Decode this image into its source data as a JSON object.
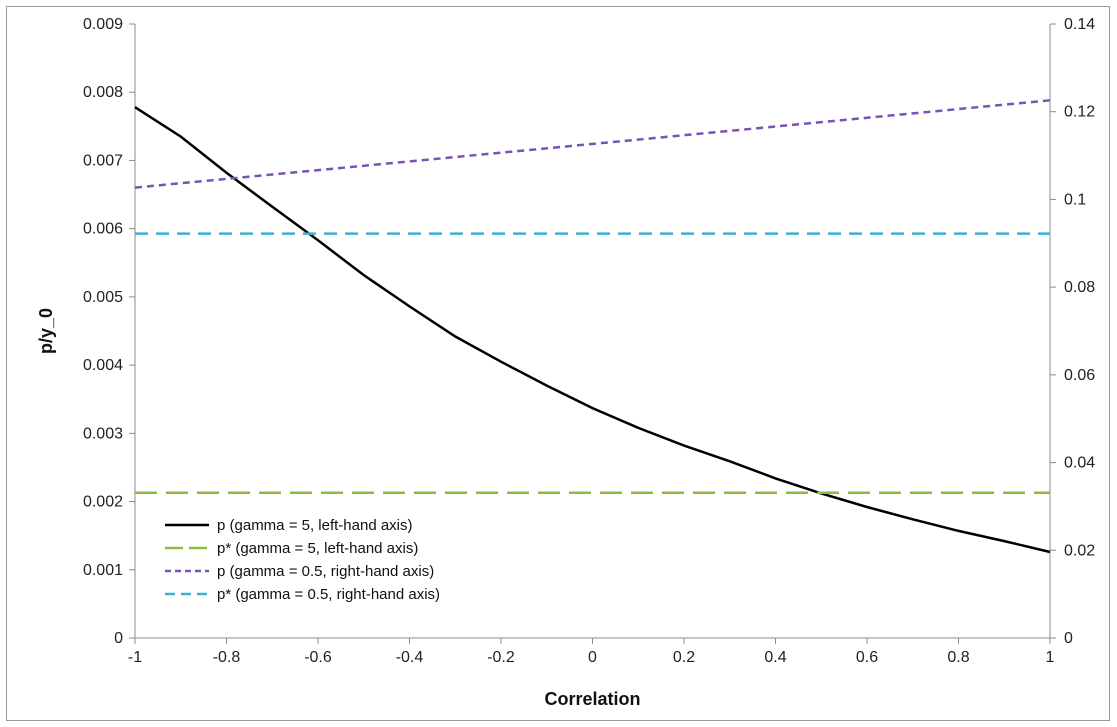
{
  "chart_data": {
    "type": "line",
    "title": "",
    "xlabel": "Correlation",
    "ylabel": "p/y_0",
    "x_ticks": [
      "-1",
      "-0.8",
      "-0.6",
      "-0.4",
      "-0.2",
      "0",
      "0.2",
      "0.4",
      "0.6",
      "0.8",
      "1"
    ],
    "y_left_ticks": [
      "0",
      "0.001",
      "0.002",
      "0.003",
      "0.004",
      "0.005",
      "0.006",
      "0.007",
      "0.008",
      "0.009"
    ],
    "y_right_ticks": [
      "0",
      "0.02",
      "0.04",
      "0.06",
      "0.08",
      "0.1",
      "0.12",
      "0.14"
    ],
    "xlim": [
      -1,
      1
    ],
    "ylim_left": [
      0,
      0.009
    ],
    "ylim_right": [
      0,
      0.14
    ],
    "grid": false,
    "legend_position": "bottom-left",
    "series": [
      {
        "name": "p (gamma = 5, left-hand axis)",
        "axis": "left",
        "color": "#000000",
        "style": "solid",
        "x": [
          -1,
          -0.9,
          -0.8,
          -0.7,
          -0.6,
          -0.5,
          -0.4,
          -0.3,
          -0.2,
          -0.1,
          0,
          0.1,
          0.2,
          0.3,
          0.4,
          0.5,
          0.6,
          0.7,
          0.8,
          0.9,
          1
        ],
        "y": [
          0.00778,
          0.00735,
          0.00682,
          0.00632,
          0.00583,
          0.00532,
          0.00486,
          0.00442,
          0.00405,
          0.0037,
          0.00337,
          0.00308,
          0.00282,
          0.00259,
          0.00234,
          0.00212,
          0.00192,
          0.00174,
          0.00157,
          0.00142,
          0.00126
        ]
      },
      {
        "name": "p* (gamma = 5, left-hand axis)",
        "axis": "left",
        "color": "#8dbb3c",
        "style": "long-dash",
        "x": [
          -1,
          1
        ],
        "y": [
          0.00213,
          0.00213
        ]
      },
      {
        "name": "p (gamma = 0.5, right-hand axis)",
        "axis": "right",
        "color": "#7a52b8",
        "style": "short-dash",
        "x": [
          -1,
          1
        ],
        "y": [
          0.1027,
          0.1226
        ]
      },
      {
        "name": "p* (gamma = 0.5, right-hand axis)",
        "axis": "right",
        "color": "#3fb2cf",
        "style": "dash",
        "x": [
          -1,
          1
        ],
        "y": [
          0.0922,
          0.0922
        ]
      }
    ]
  }
}
